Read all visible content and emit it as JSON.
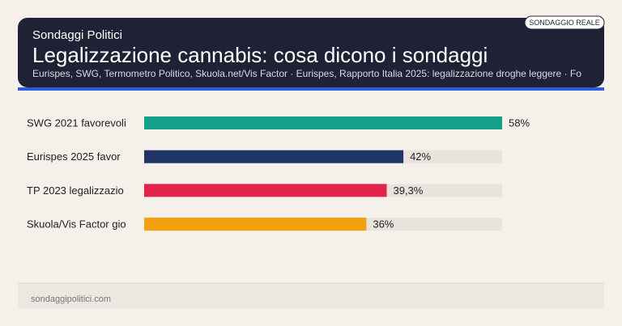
{
  "brand": "Sondaggi Politici",
  "badge": "SONDAGGIO REALE",
  "footer": "sondaggipolitici.com",
  "chart_data": {
    "type": "bar",
    "orientation": "horizontal",
    "title": "Legalizzazione cannabis: cosa dicono i sondaggi",
    "subtitle": "Eurispes, SWG, Termometro Politico, Skuola.net/Vis Factor · Eurispes, Rapporto Italia 2025: legalizzazione droghe leggere · Fo",
    "categories": [
      "SWG 2021 favorevoli",
      "Eurispes 2025 favor",
      "TP 2023 legalizzazio",
      "Skuola/Vis Factor gio"
    ],
    "values": [
      58,
      42,
      39.3,
      36
    ],
    "value_labels": [
      "58%",
      "42%",
      "39,3%",
      "36%"
    ],
    "colors": [
      "#12a08b",
      "#1e3566",
      "#e2234c",
      "#f49f0c"
    ],
    "xlim": [
      0,
      58
    ]
  }
}
